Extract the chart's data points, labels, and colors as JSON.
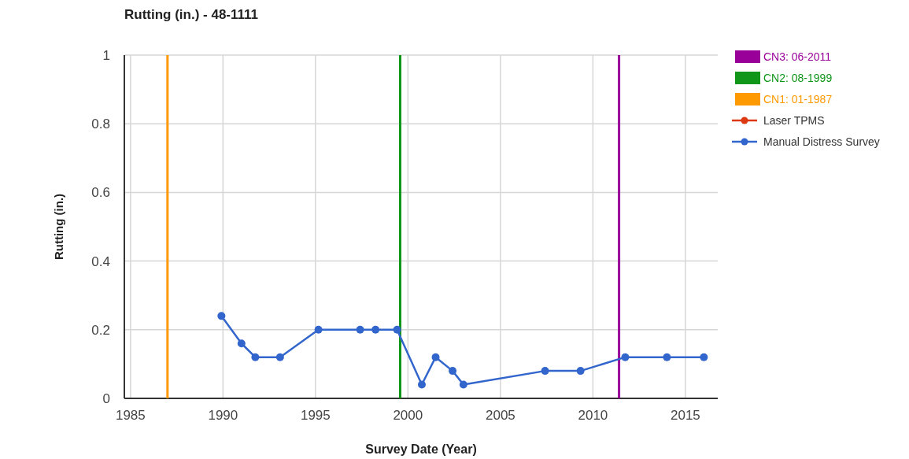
{
  "chart_data": {
    "type": "line",
    "title": "Rutting (in.) - 48-1111",
    "xlabel": "Survey Date (Year)",
    "ylabel": "Rutting (in.)",
    "xlim": [
      "1984-09",
      "2016-10"
    ],
    "xticks": [
      {
        "value": "1985",
        "label": "1985"
      },
      {
        "value": "1990",
        "label": "1990"
      },
      {
        "value": "1995",
        "label": "1995"
      },
      {
        "value": "2000",
        "label": "2000"
      },
      {
        "value": "2005",
        "label": "2005"
      },
      {
        "value": "2010",
        "label": "2010"
      },
      {
        "value": "2015",
        "label": "2015"
      }
    ],
    "ylim": [
      0,
      1
    ],
    "yticks": [
      0,
      0.2,
      0.4,
      0.6,
      0.8,
      1
    ],
    "grid": true,
    "legend": "right",
    "marker": "circle",
    "line_style": "solid",
    "ref_lines": [
      {
        "axis": "x",
        "value": "2011-06",
        "label": "CN3: 06-2011",
        "color": "#990099"
      },
      {
        "axis": "x",
        "value": "1999-08",
        "label": "CN2: 08-1999",
        "color": "#109618"
      },
      {
        "axis": "x",
        "value": "1987-01",
        "label": "CN1: 01-1987",
        "color": "#ff9900"
      }
    ],
    "series": [
      {
        "name": "Laser TPMS",
        "color": "#dc3912"
      },
      {
        "name": "Manual Distress Survey",
        "color": "#3366cc",
        "x": [
          "1989-12",
          "1991-01",
          "1991-10",
          "1993-02",
          "1995-03",
          "1997-06",
          "1998-04",
          "1999-06",
          "2000-10",
          "2001-07",
          "2002-06",
          "2003-01",
          "2007-06",
          "2009-05",
          "2011-10",
          "2014-01",
          "2016-01"
        ],
        "values": [
          0.24,
          0.16,
          0.12,
          0.12,
          0.2,
          0.2,
          0.2,
          0.2,
          0.04,
          0.12,
          0.08,
          0.04,
          0.08,
          0.08,
          0.12,
          0.12,
          0.12
        ]
      }
    ]
  }
}
